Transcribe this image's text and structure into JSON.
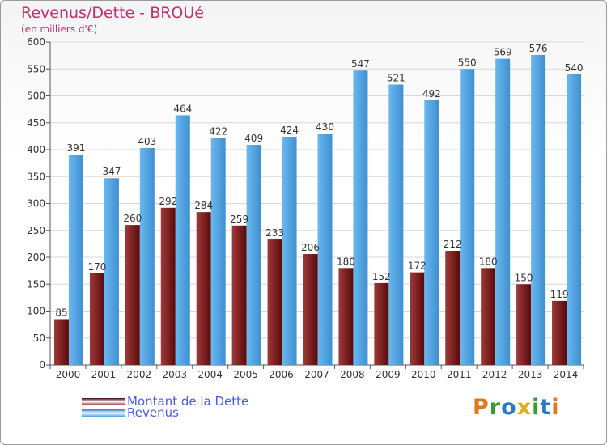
{
  "header": {
    "title": "Revenus/Dette - BROUé",
    "subtitle": "(en milliers d'€)"
  },
  "legend": {
    "debt_label": "Montant de la Dette",
    "revenue_label": "Revenus"
  },
  "logo": {
    "text": "Proxiti"
  },
  "colors": {
    "debt_dark": "#5a0a0a",
    "debt_light": "#9e3a3a",
    "revenue": "#4a9ee0",
    "revenue_light": "#6ab8ef",
    "grid": "#d8d8d8",
    "title": "#c0306a"
  },
  "chart_data": {
    "type": "bar",
    "title": "Revenus/Dette - BROUé",
    "subtitle": "(en milliers d'€)",
    "categories": [
      "2000",
      "2001",
      "2002",
      "2003",
      "2004",
      "2005",
      "2006",
      "2007",
      "2008",
      "2009",
      "2010",
      "2011",
      "2012",
      "2013",
      "2014"
    ],
    "series": [
      {
        "name": "Montant de la Dette",
        "values": [
          85,
          170,
          260,
          292,
          284,
          259,
          233,
          206,
          180,
          152,
          172,
          212,
          180,
          150,
          119
        ]
      },
      {
        "name": "Revenus",
        "values": [
          391,
          347,
          403,
          464,
          422,
          409,
          424,
          430,
          547,
          521,
          492,
          550,
          569,
          576,
          540
        ]
      }
    ],
    "ylim": [
      0,
      600
    ],
    "yticks": [
      0,
      50,
      100,
      150,
      200,
      250,
      300,
      350,
      400,
      450,
      500,
      550,
      600
    ],
    "grid": true,
    "legend_position": "bottom-left"
  }
}
